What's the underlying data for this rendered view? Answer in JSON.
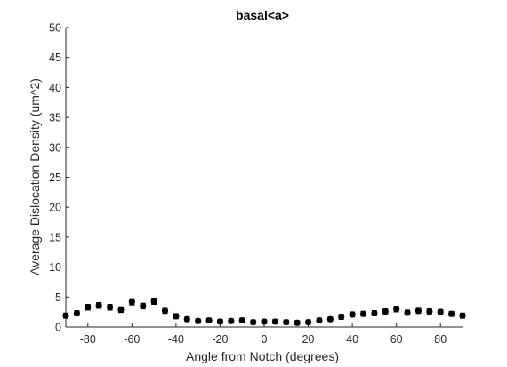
{
  "chart_data": {
    "type": "scatter",
    "title": "basal<a>",
    "xlabel": "Angle from Notch (degrees)",
    "ylabel": "Average Dislocation Density (um^2)",
    "xlim": [
      -90,
      90
    ],
    "ylim": [
      0,
      50
    ],
    "xticks": [
      -80,
      -60,
      -40,
      -20,
      0,
      20,
      40,
      60,
      80
    ],
    "yticks": [
      0,
      5,
      10,
      15,
      20,
      25,
      30,
      35,
      40,
      45,
      50
    ],
    "grid": false,
    "marker": "filled circle with error bars",
    "marker_color": "#000000",
    "x": [
      -90,
      -85,
      -80,
      -75,
      -70,
      -65,
      -60,
      -55,
      -50,
      -45,
      -40,
      -35,
      -30,
      -25,
      -20,
      -15,
      -10,
      -5,
      0,
      5,
      10,
      15,
      20,
      25,
      30,
      35,
      40,
      45,
      50,
      55,
      60,
      65,
      70,
      75,
      80,
      85,
      90
    ],
    "y": [
      1.9,
      2.3,
      3.3,
      3.6,
      3.3,
      2.9,
      4.2,
      3.5,
      4.3,
      2.7,
      1.8,
      1.3,
      1.0,
      1.1,
      0.9,
      1.0,
      1.1,
      0.8,
      0.9,
      0.9,
      0.8,
      0.7,
      0.8,
      1.1,
      1.3,
      1.7,
      2.1,
      2.2,
      2.3,
      2.6,
      3.0,
      2.4,
      2.7,
      2.6,
      2.5,
      2.2,
      1.9
    ],
    "error": [
      0.35,
      0.35,
      0.4,
      0.4,
      0.4,
      0.4,
      0.45,
      0.4,
      0.45,
      0.35,
      0.35,
      0.3,
      0.3,
      0.3,
      0.3,
      0.3,
      0.3,
      0.3,
      0.3,
      0.3,
      0.3,
      0.3,
      0.3,
      0.3,
      0.3,
      0.35,
      0.35,
      0.35,
      0.35,
      0.35,
      0.4,
      0.35,
      0.35,
      0.35,
      0.35,
      0.35,
      0.35
    ]
  }
}
